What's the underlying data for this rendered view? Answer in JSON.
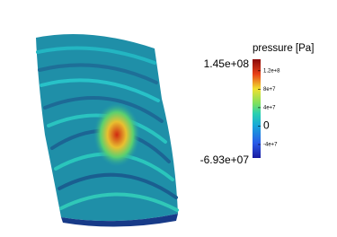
{
  "colorbar": {
    "title": "pressure [Pa]",
    "max": {
      "value": 145000000,
      "label": "1.45e+08"
    },
    "min": {
      "value": -69300000,
      "label": "-6.93e+07"
    },
    "ticks": [
      {
        "value": 120000000,
        "label": "1.2e+8"
      },
      {
        "value": 80000000,
        "label": "8e+7"
      },
      {
        "value": 40000000,
        "label": "4e+7"
      },
      0,
      {
        "value": -40000000,
        "label": "-4e+7"
      }
    ]
  }
}
